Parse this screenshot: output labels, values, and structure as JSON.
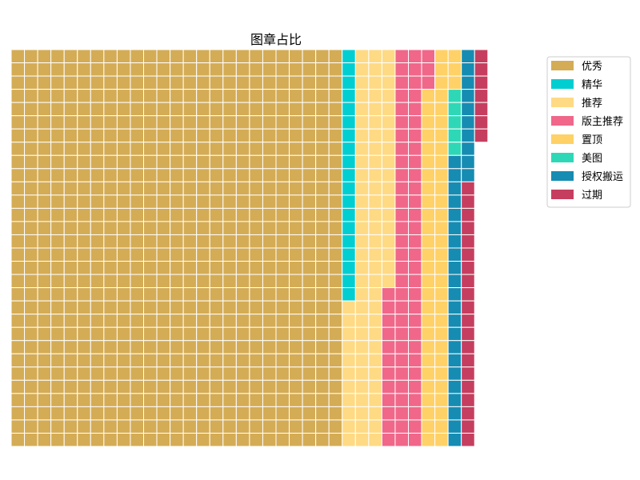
{
  "chart_data": {
    "type": "waffle",
    "title": "图章占比",
    "grid": {
      "columns": 40,
      "rows": 30,
      "fill_order": "column-major, top-to-bottom, left-to-right"
    },
    "legend_position": "right",
    "categories": [
      "优秀",
      "精华",
      "推荐",
      "版主推荐",
      "置顶",
      "美图",
      "授权搬运",
      "过期"
    ],
    "values": [
      750,
      19,
      89,
      75,
      60,
      5,
      32,
      27
    ],
    "colors": [
      "#D4AC55",
      "#00CED1",
      "#FFDA84",
      "#F0678A",
      "#FFD166",
      "#2ED8B6",
      "#168CB2",
      "#C63E5F"
    ]
  }
}
